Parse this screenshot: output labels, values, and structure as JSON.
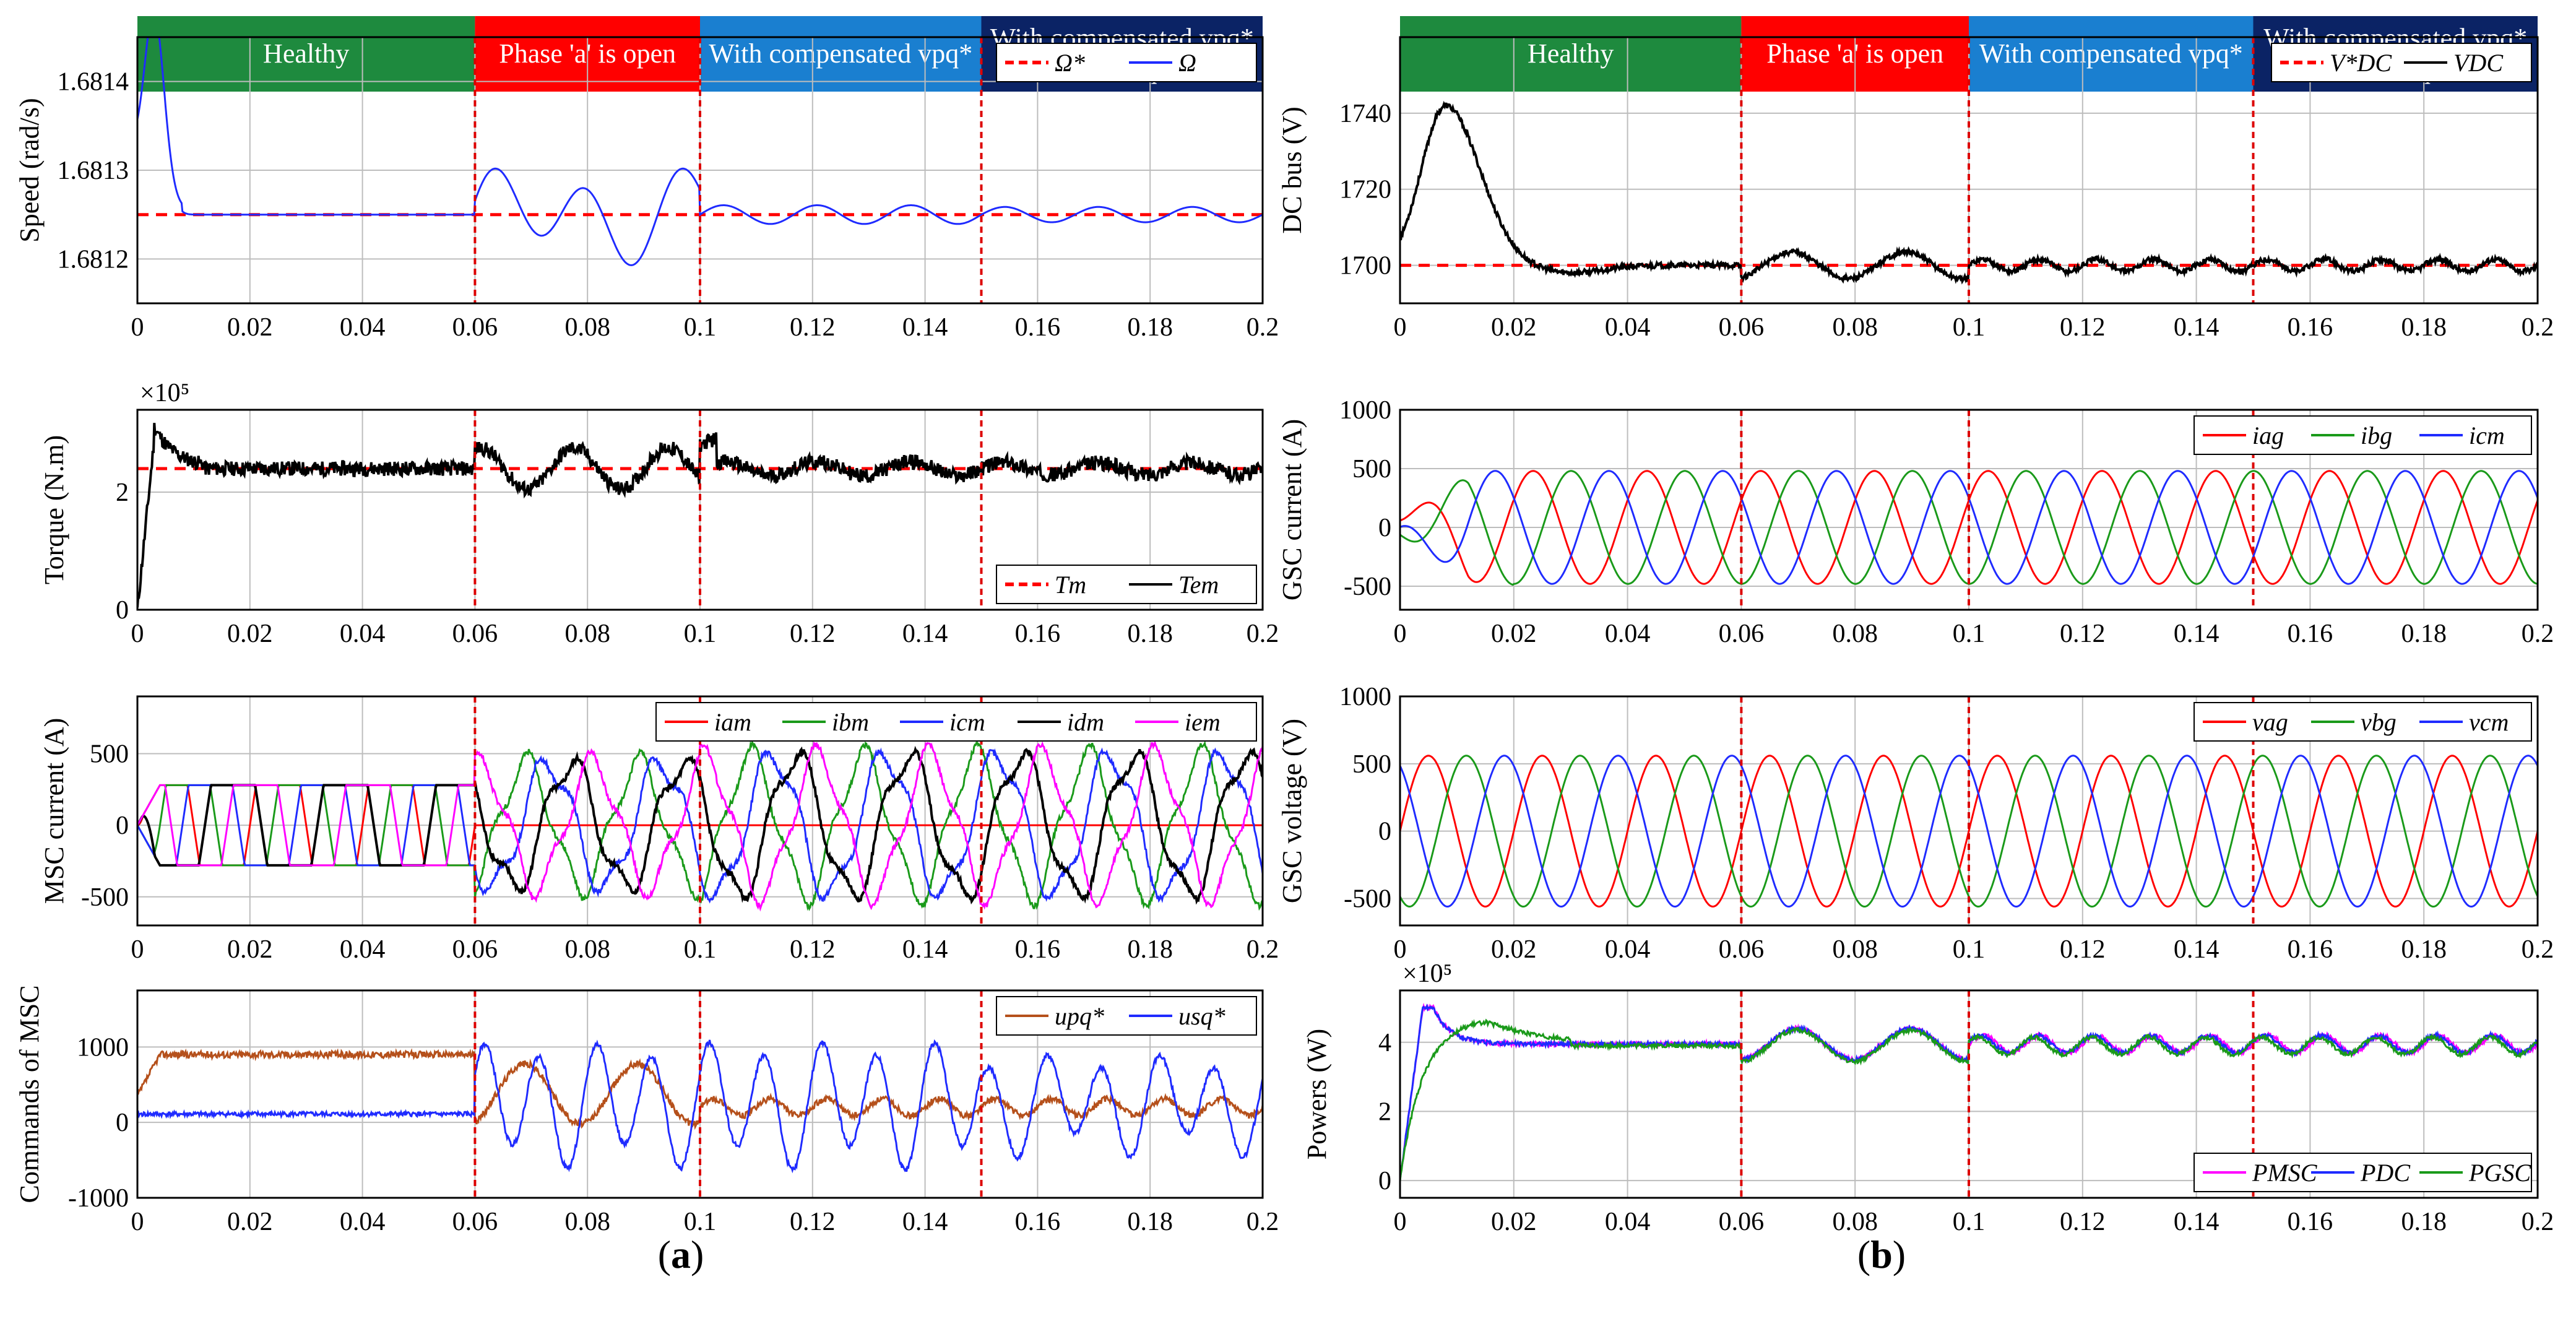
{
  "panel_captions": {
    "a": "a",
    "b": "b"
  },
  "phase_headers": [
    {
      "label": "Healthy",
      "color": "#1e8a3e"
    },
    {
      "label": "Phase 'a' is open",
      "color": "#ff0000"
    },
    {
      "label": "With compensated vpq*",
      "color": "#1a7fd0"
    },
    {
      "label": "With compensated vpq* and vsq*",
      "color": "#0b2365"
    }
  ],
  "colors": {
    "red": "#ff0000",
    "green": "#1a9a1a",
    "blue": "#1f2bff",
    "black": "#000000",
    "magenta": "#ff00ff",
    "brown": "#b5501b",
    "grid": "#bdbdbd",
    "phase_line": "#dd0000",
    "header_text": "#ffffff"
  },
  "chart_data": [
    {
      "id": "speed",
      "type": "line",
      "ylabel": "Speed (rad/s)",
      "xlim": [
        0,
        0.2
      ],
      "ylim": [
        1.68115,
        1.68145
      ],
      "x_ticks": [
        "0",
        "0.02",
        "0.04",
        "0.06",
        "0.08",
        "0.1",
        "0.12",
        "0.14",
        "0.16",
        "0.18",
        "0.2"
      ],
      "y_ticks": [
        1.6812,
        1.6813,
        1.6814
      ],
      "y_tick_labels": [
        "1.6812",
        "1.6813",
        "1.6814"
      ],
      "phase_boundaries": [
        0.06,
        0.1,
        0.15
      ],
      "legend_placement": "top-right",
      "grid": true,
      "series": [
        {
          "name": "Ω*",
          "style": "dashed",
          "color": "#ff0000",
          "model": "const",
          "value": 1.68125
        },
        {
          "name": "Ω",
          "style": "solid",
          "color": "#1f2bff",
          "model": "speed",
          "base": 1.68125
        }
      ]
    },
    {
      "id": "torque",
      "type": "line",
      "ylabel": "Torque (N.m)",
      "multiplier": "×10⁵",
      "xlim": [
        0,
        0.2
      ],
      "ylim": [
        0,
        3.4
      ],
      "x_ticks": [
        "0",
        "0.02",
        "0.04",
        "0.06",
        "0.08",
        "0.1",
        "0.12",
        "0.14",
        "0.16",
        "0.18",
        "0.2"
      ],
      "y_ticks": [
        0,
        2
      ],
      "y_tick_labels": [
        "0",
        "2"
      ],
      "phase_boundaries": [
        0.06,
        0.1,
        0.15
      ],
      "legend_placement": "bottom-right",
      "grid": true,
      "series": [
        {
          "name": "Tm",
          "style": "dashed",
          "color": "#ff0000",
          "model": "const",
          "value": 2.4
        },
        {
          "name": "Tem",
          "style": "solid",
          "color": "#000000",
          "model": "torque",
          "base": 2.4
        }
      ]
    },
    {
      "id": "msc_current",
      "type": "line",
      "ylabel": "MSC current (A)",
      "xlim": [
        0,
        0.2
      ],
      "ylim": [
        -700,
        900
      ],
      "x_ticks": [
        "0",
        "0.02",
        "0.04",
        "0.06",
        "0.08",
        "0.1",
        "0.12",
        "0.14",
        "0.16",
        "0.18",
        "0.2"
      ],
      "y_ticks": [
        -500,
        0,
        500
      ],
      "y_tick_labels": [
        "-500",
        "0",
        "500"
      ],
      "phase_boundaries": [
        0.06,
        0.1,
        0.15
      ],
      "legend_placement": "top-right",
      "grid": true,
      "series": [
        {
          "name": "iam",
          "style": "solid",
          "color": "#ff0000",
          "model": "msc",
          "index": 0
        },
        {
          "name": "ibm",
          "style": "solid",
          "color": "#1a9a1a",
          "model": "msc",
          "index": 1
        },
        {
          "name": "icm",
          "style": "solid",
          "color": "#1f2bff",
          "model": "msc",
          "index": 2
        },
        {
          "name": "idm",
          "style": "solid",
          "color": "#000000",
          "model": "msc",
          "index": 3
        },
        {
          "name": "iem",
          "style": "solid",
          "color": "#ff00ff",
          "model": "msc",
          "index": 4
        }
      ]
    },
    {
      "id": "msc_commands",
      "type": "line",
      "ylabel": "Commands of MSC",
      "xlim": [
        0,
        0.2
      ],
      "ylim": [
        -1000,
        1750
      ],
      "x_ticks": [
        "0",
        "0.02",
        "0.04",
        "0.06",
        "0.08",
        "0.1",
        "0.12",
        "0.14",
        "0.16",
        "0.18",
        "0.2"
      ],
      "y_ticks": [
        -1000,
        0,
        1000
      ],
      "y_tick_labels": [
        "-1000",
        "0",
        "1000"
      ],
      "phase_boundaries": [
        0.06,
        0.1,
        0.15
      ],
      "legend_placement": "top-right",
      "grid": true,
      "series": [
        {
          "name": "upq*",
          "style": "solid",
          "color": "#b5501b",
          "model": "upq"
        },
        {
          "name": "usq*",
          "style": "solid",
          "color": "#1f2bff",
          "model": "usq"
        }
      ]
    },
    {
      "id": "dc_bus",
      "type": "line",
      "ylabel": "DC bus (V)",
      "xlim": [
        0,
        0.2
      ],
      "ylim": [
        1690,
        1760
      ],
      "x_ticks": [
        "0",
        "0.02",
        "0.04",
        "0.06",
        "0.08",
        "0.1",
        "0.12",
        "0.14",
        "0.16",
        "0.18",
        "0.2"
      ],
      "y_ticks": [
        1700,
        1720,
        1740
      ],
      "y_tick_labels": [
        "1700",
        "1720",
        "1740"
      ],
      "phase_boundaries": [
        0.06,
        0.1,
        0.15
      ],
      "legend_placement": "top-right",
      "grid": true,
      "series": [
        {
          "name": "V*DC",
          "style": "dashed",
          "color": "#ff0000",
          "model": "const",
          "value": 1700
        },
        {
          "name": "VDC",
          "style": "solid",
          "color": "#000000",
          "model": "vdc",
          "base": 1700
        }
      ]
    },
    {
      "id": "gsc_current",
      "type": "line",
      "ylabel": "GSC current (A)",
      "xlim": [
        0,
        0.2
      ],
      "ylim": [
        -700,
        1000
      ],
      "x_ticks": [
        "0",
        "0.02",
        "0.04",
        "0.06",
        "0.08",
        "0.1",
        "0.12",
        "0.14",
        "0.16",
        "0.18",
        "0.2"
      ],
      "y_ticks": [
        -500,
        0,
        500,
        1000
      ],
      "y_tick_labels": [
        "-500",
        "0",
        "500",
        "1000"
      ],
      "phase_boundaries": [
        0.06,
        0.1,
        0.15
      ],
      "legend_placement": "top-right",
      "grid": true,
      "series": [
        {
          "name": "iag",
          "style": "solid",
          "color": "#ff0000",
          "model": "gsci",
          "index": 0
        },
        {
          "name": "ibg",
          "style": "solid",
          "color": "#1a9a1a",
          "model": "gsci",
          "index": 1
        },
        {
          "name": "icm",
          "style": "solid",
          "color": "#1f2bff",
          "model": "gsci",
          "index": 2
        }
      ]
    },
    {
      "id": "gsc_voltage",
      "type": "line",
      "ylabel": "GSC voltage (V)",
      "xlim": [
        0,
        0.2
      ],
      "ylim": [
        -700,
        1000
      ],
      "x_ticks": [
        "0",
        "0.02",
        "0.04",
        "0.06",
        "0.08",
        "0.1",
        "0.12",
        "0.14",
        "0.16",
        "0.18",
        "0.2"
      ],
      "y_ticks": [
        -500,
        0,
        500,
        1000
      ],
      "y_tick_labels": [
        "-500",
        "0",
        "500",
        "1000"
      ],
      "phase_boundaries": [
        0.06,
        0.1,
        0.15
      ],
      "legend_placement": "top-right",
      "grid": true,
      "series": [
        {
          "name": "vag",
          "style": "solid",
          "color": "#ff0000",
          "model": "gscv",
          "index": 0
        },
        {
          "name": "vbg",
          "style": "solid",
          "color": "#1a9a1a",
          "model": "gscv",
          "index": 1
        },
        {
          "name": "vcm",
          "style": "solid",
          "color": "#1f2bff",
          "model": "gscv",
          "index": 2
        }
      ]
    },
    {
      "id": "powers",
      "type": "line",
      "ylabel": "Powers (W)",
      "multiplier": "×10⁵",
      "xlim": [
        0,
        0.2
      ],
      "ylim": [
        -0.5,
        5.5
      ],
      "x_ticks": [
        "0",
        "0.02",
        "0.04",
        "0.06",
        "0.08",
        "0.1",
        "0.12",
        "0.14",
        "0.16",
        "0.18",
        "0.2"
      ],
      "y_ticks": [
        0,
        2,
        4
      ],
      "y_tick_labels": [
        "0",
        "2",
        "4"
      ],
      "phase_boundaries": [
        0.06,
        0.1,
        0.15
      ],
      "legend_placement": "bottom-right",
      "grid": true,
      "series": [
        {
          "name": "PMSC",
          "style": "solid",
          "color": "#ff00ff",
          "model": "pow",
          "index": 0
        },
        {
          "name": "PDC",
          "style": "solid",
          "color": "#1f2bff",
          "model": "pow",
          "index": 1
        },
        {
          "name": "PGSC",
          "style": "solid",
          "color": "#1a9a1a",
          "model": "pow",
          "index": 2
        }
      ]
    }
  ]
}
